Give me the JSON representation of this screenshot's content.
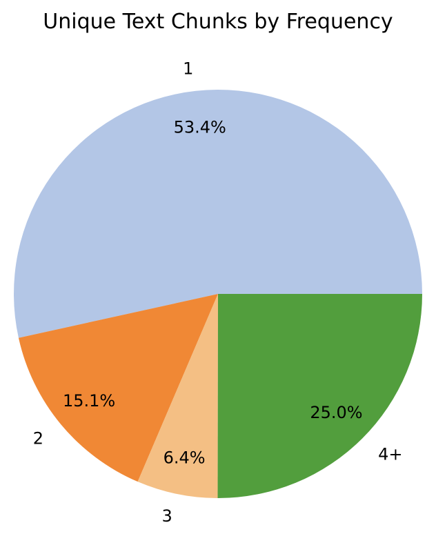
{
  "chart_data": {
    "type": "pie",
    "title": "Unique Text Chunks by Frequency",
    "categories": [
      "1",
      "2",
      "3",
      "4+"
    ],
    "values": [
      53.4,
      15.1,
      6.4,
      25.0
    ],
    "percent_labels": [
      "53.4%",
      "15.1%",
      "6.4%",
      "25.0%"
    ],
    "colors": [
      "#b3c6e6",
      "#f08835",
      "#f4bf84",
      "#529e3d"
    ],
    "start_angle": 0,
    "direction": "counterclockwise",
    "legend": "none"
  }
}
